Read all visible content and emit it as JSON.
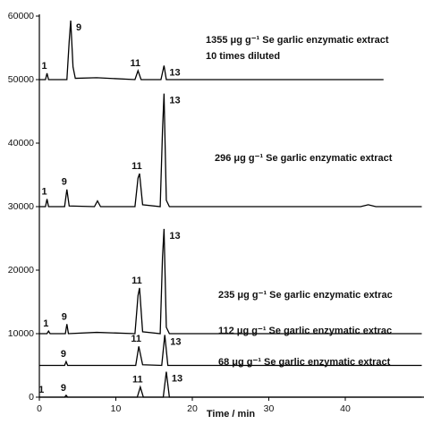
{
  "chart_data": {
    "type": "line",
    "xlabel": "Time / min",
    "xlim": [
      0,
      50
    ],
    "ylim": [
      0,
      60000
    ],
    "xticks": [
      0,
      10,
      20,
      30,
      40
    ],
    "yticks": [
      0,
      10000,
      20000,
      30000,
      40000,
      50000,
      60000
    ],
    "series": [
      {
        "name": "1355 μg g⁻¹ Se garlic enzymatic extract",
        "note": "10 times diluted",
        "color": "#000000",
        "x": [
          0,
          0.8,
          1,
          1.2,
          3.6,
          3.9,
          4.1,
          4.4,
          4.7,
          7.5,
          12.5,
          12.9,
          13.3,
          15.9,
          16.3,
          16.6,
          17,
          45
        ],
        "values": [
          50000,
          50000,
          51000,
          50000,
          50000,
          56000,
          59300,
          52000,
          50200,
          50300,
          50000,
          51400,
          50000,
          50000,
          52200,
          50000,
          50000,
          50000
        ],
        "peaks": [
          {
            "label": "1",
            "x": 1
          },
          {
            "label": "9",
            "x": 4.1
          },
          {
            "label": "11",
            "x": 12.9
          },
          {
            "label": "13",
            "x": 16.3
          }
        ]
      },
      {
        "name": "296 μg g⁻¹ Se garlic enzymatic extract",
        "color": "#000000",
        "x": [
          0,
          0.8,
          1,
          1.2,
          3.3,
          3.6,
          3.9,
          7.2,
          7.6,
          8,
          12.5,
          12.9,
          13.1,
          13.5,
          15.8,
          16.1,
          16.3,
          16.6,
          17,
          42,
          43,
          44,
          50
        ],
        "values": [
          30000,
          30000,
          31200,
          30000,
          30000,
          32700,
          30100,
          30000,
          30900,
          30000,
          30000,
          34500,
          35200,
          30300,
          30000,
          42000,
          47800,
          31000,
          30000,
          30000,
          30300,
          30000,
          30000
        ],
        "peaks": [
          {
            "label": "1",
            "x": 1
          },
          {
            "label": "9",
            "x": 3.6
          },
          {
            "label": "11",
            "x": 13.1
          },
          {
            "label": "13",
            "x": 16.3
          }
        ]
      },
      {
        "name": "235 μg g⁻¹ Se garlic enzymatic extrac",
        "color": "#000000",
        "x": [
          0,
          1,
          1.2,
          1.4,
          3.4,
          3.6,
          3.8,
          7.5,
          12.5,
          12.9,
          13.1,
          13.5,
          15.8,
          16.1,
          16.3,
          16.6,
          17,
          50
        ],
        "values": [
          10000,
          10000,
          10400,
          10000,
          10000,
          11500,
          10000,
          10200,
          10000,
          16000,
          17200,
          10300,
          10000,
          22000,
          26500,
          11000,
          10000,
          10000
        ],
        "peaks": [
          {
            "label": "1",
            "x": 1.2
          },
          {
            "label": "9",
            "x": 3.6
          },
          {
            "label": "11",
            "x": 13.1
          },
          {
            "label": "13",
            "x": 16.3
          }
        ]
      },
      {
        "name": "112 μg g⁻¹ Se garlic enzymatic extrac",
        "color": "#000000",
        "x": [
          0,
          3.3,
          3.5,
          3.7,
          12.6,
          13,
          13.5,
          16,
          16.4,
          16.8,
          50
        ],
        "values": [
          5000,
          5000,
          5600,
          5000,
          5000,
          8000,
          5100,
          5000,
          9800,
          5000,
          5000
        ],
        "peaks": [
          {
            "label": "9",
            "x": 3.5
          },
          {
            "label": "11",
            "x": 13
          },
          {
            "label": "13",
            "x": 16.4
          }
        ]
      },
      {
        "name": "68 μg g⁻¹ Se garlic enzymatic extract",
        "color": "#000000",
        "x": [
          0,
          3.3,
          3.5,
          3.7,
          12.8,
          13.2,
          13.6,
          16.2,
          16.6,
          17,
          50
        ],
        "values": [
          0,
          0,
          300,
          0,
          0,
          1600,
          0,
          0,
          4000,
          0,
          0
        ],
        "peaks": [
          {
            "label": "1",
            "x": 0.6
          },
          {
            "label": "9",
            "x": 3.5
          },
          {
            "label": "11",
            "x": 13.2
          },
          {
            "label": "13",
            "x": 16.6
          }
        ]
      }
    ]
  }
}
